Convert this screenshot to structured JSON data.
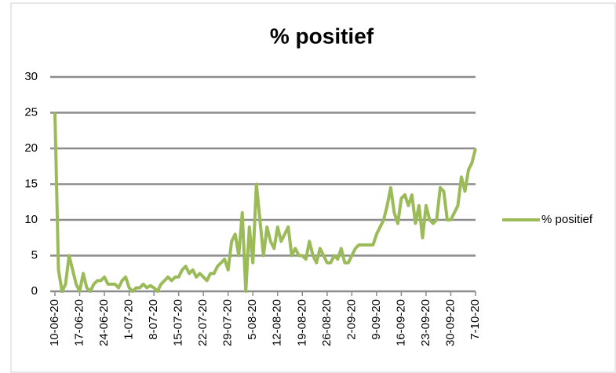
{
  "chart_data": {
    "type": "line",
    "title": "% positief",
    "categories": [
      "10-06-20",
      null,
      null,
      null,
      null,
      null,
      null,
      "17-06-20",
      null,
      null,
      null,
      null,
      null,
      null,
      "24-06-20",
      null,
      null,
      null,
      null,
      null,
      null,
      "1-07-20",
      null,
      null,
      null,
      null,
      null,
      null,
      "8-07-20",
      null,
      null,
      null,
      null,
      null,
      null,
      "15-07-20",
      null,
      null,
      null,
      null,
      null,
      null,
      "22-07-20",
      null,
      null,
      null,
      null,
      null,
      null,
      "29-07-20",
      null,
      null,
      null,
      null,
      null,
      null,
      "5-08-20",
      null,
      null,
      null,
      null,
      null,
      null,
      "12-08-20",
      null,
      null,
      null,
      null,
      null,
      null,
      "19-08-20",
      null,
      null,
      null,
      null,
      null,
      null,
      "26-08-20",
      null,
      null,
      null,
      null,
      null,
      null,
      "2-09-20",
      null,
      null,
      null,
      null,
      null,
      null,
      "9-09-20",
      null,
      null,
      null,
      null,
      null,
      null,
      "16-09-20",
      null,
      null,
      null,
      null,
      null,
      null,
      "23-09-20",
      null,
      null,
      null,
      null,
      null,
      null,
      "30-09-20",
      null,
      null,
      null,
      null,
      null,
      null,
      "7-10-20"
    ],
    "series": [
      {
        "name": "% positief",
        "color": "#9bbb59",
        "values": [
          25,
          3,
          0,
          1,
          5,
          3,
          1,
          0,
          2.5,
          0.5,
          0,
          1,
          1.5,
          1.5,
          2,
          1,
          1,
          1,
          0.5,
          1.5,
          2,
          0.5,
          0,
          0.5,
          0.5,
          1,
          0.5,
          0.8,
          0.5,
          0,
          1,
          1.5,
          2,
          1.5,
          2,
          2,
          3,
          3.5,
          2.5,
          3,
          2,
          2.5,
          2,
          1.5,
          2.5,
          2.5,
          3.5,
          4,
          4.5,
          3,
          7,
          8,
          5,
          11,
          0,
          9,
          4,
          15,
          10,
          5,
          9,
          7,
          6,
          9,
          7,
          8,
          9,
          5,
          6,
          5,
          5,
          4.5,
          7,
          5,
          4,
          6,
          5,
          4,
          4,
          5,
          4.5,
          6,
          4,
          4,
          5,
          6,
          6.5,
          6.5,
          6.5,
          6.5,
          6.5,
          8,
          9,
          10,
          12,
          14.5,
          11,
          9.5,
          13,
          13.5,
          12,
          13.5,
          9.5,
          12,
          7.5,
          12,
          10,
          9.5,
          10,
          14.5,
          14,
          10,
          10,
          11,
          12,
          16,
          14,
          17,
          18,
          20
        ]
      }
    ],
    "ylim": [
      0,
      30
    ],
    "yticks": [
      0,
      5,
      10,
      15,
      20,
      25,
      30
    ],
    "grid": true,
    "legend": "right"
  }
}
